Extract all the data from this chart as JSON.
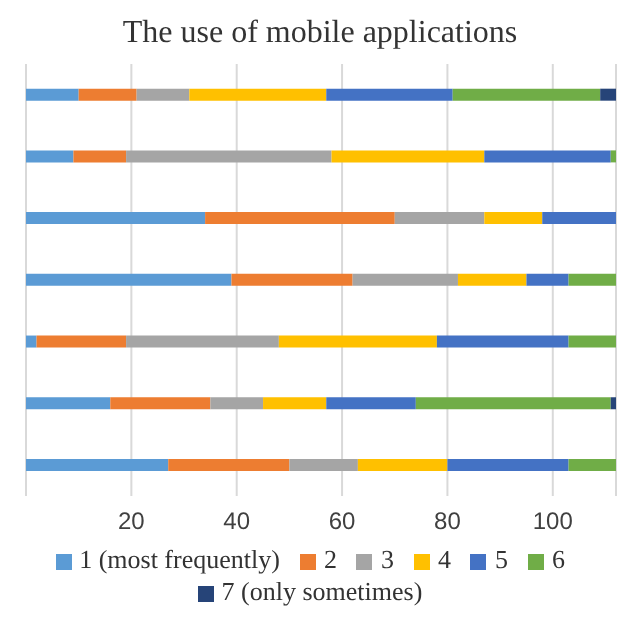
{
  "chart_data": {
    "type": "bar",
    "orientation": "horizontal",
    "stacked": true,
    "title": "The use of mobile applications",
    "categories": [
      null,
      null,
      null,
      null,
      null,
      null,
      null
    ],
    "series": [
      {
        "name": "1 (most frequently)",
        "color": "#5b9bd5",
        "values": [
          10,
          9,
          34,
          39,
          2,
          16,
          27
        ]
      },
      {
        "name": "2",
        "color": "#ed7d31",
        "values": [
          11,
          10,
          36,
          23,
          17,
          19,
          23
        ]
      },
      {
        "name": "3",
        "color": "#a5a5a5",
        "values": [
          10,
          39,
          17,
          20,
          29,
          10,
          13
        ]
      },
      {
        "name": "4",
        "color": "#ffc000",
        "values": [
          26,
          29,
          11,
          13,
          30,
          12,
          17
        ]
      },
      {
        "name": "5",
        "color": "#4472c4",
        "values": [
          24,
          24,
          14,
          8,
          25,
          17,
          23
        ]
      },
      {
        "name": "6",
        "color": "#70ad47",
        "values": [
          28,
          1,
          null,
          9,
          9,
          37,
          9
        ]
      },
      {
        "name": "7 (only sometimes)",
        "color": "#264478",
        "values": [
          3,
          null,
          null,
          null,
          null,
          1,
          null
        ]
      }
    ],
    "xlim": [
      0,
      112
    ],
    "xticks": [
      20,
      40,
      60,
      80,
      100
    ],
    "grid": "x",
    "legend": "bottom"
  }
}
